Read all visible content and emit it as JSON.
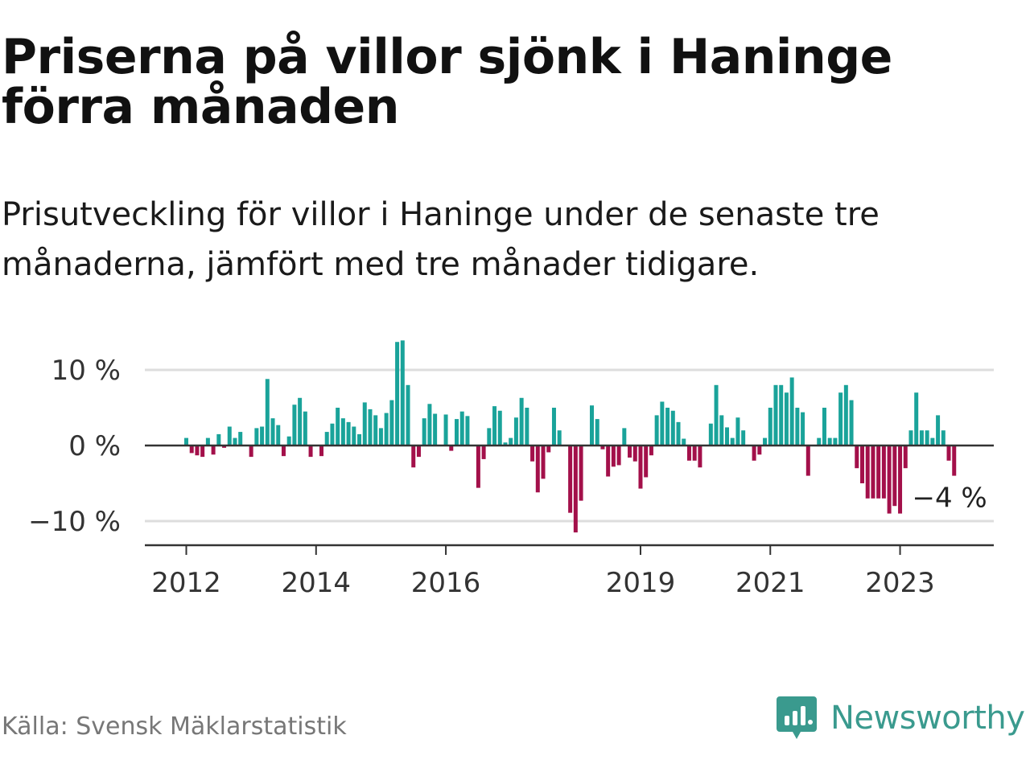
{
  "title": "Priserna på villor sjönk i Haninge förra månaden",
  "subtitle": "Prisutveckling för villor i Haninge under de senaste tre månaderna, jämfört med tre månader tidigare.",
  "source": "Källa: Svensk Mäklarstatistik",
  "brand": {
    "name": "Newsworthy",
    "icon": "newsworthy-logo-icon",
    "color": "#3a9a8e"
  },
  "colors": {
    "positive": "#1aa39a",
    "negative": "#a3104a",
    "grid": "#dddddd",
    "axis": "#333333"
  },
  "chart_data": {
    "type": "bar",
    "title": "Priserna på villor sjönk i Haninge förra månaden",
    "xlabel": "",
    "ylabel": "",
    "unit": "%",
    "ylim": [
      -13.5,
      13.5
    ],
    "grid": true,
    "y_ticks": [
      {
        "value": 10,
        "label": "10 %"
      },
      {
        "value": 0,
        "label": "0 %"
      },
      {
        "value": -10,
        "label": "−10 %"
      }
    ],
    "x_ticks": [
      {
        "label": "2012",
        "index": 0
      },
      {
        "label": "2014",
        "index": 24
      },
      {
        "label": "2016",
        "index": 48
      },
      {
        "label": "2019",
        "index": 84
      },
      {
        "label": "2021",
        "index": 108
      },
      {
        "label": "2023",
        "index": 132
      }
    ],
    "start": "2012-01",
    "annotation": {
      "label": "−4 %",
      "index": 142,
      "value": -4
    },
    "values": [
      1,
      -1,
      -1.3,
      -1.5,
      1,
      -1.2,
      1.5,
      -0.3,
      2.5,
      1,
      1.8,
      0,
      -1.5,
      2.3,
      2.5,
      8.8,
      3.6,
      2.7,
      -1.4,
      1.2,
      5.4,
      6.3,
      4.5,
      -1.5,
      0,
      -1.4,
      1.8,
      2.9,
      5,
      3.6,
      3.1,
      2.5,
      1.5,
      5.7,
      4.8,
      4,
      2.3,
      4.3,
      6,
      13.7,
      13.9,
      8,
      -2.9,
      -1.5,
      3.6,
      5.5,
      4.2,
      0,
      4.1,
      -0.7,
      3.5,
      4.5,
      3.9,
      0,
      -5.6,
      -1.8,
      2.3,
      5.2,
      4.6,
      0.4,
      1,
      3.7,
      6.3,
      5,
      -2.1,
      -6.2,
      -4.4,
      -0.9,
      5,
      2,
      0,
      -8.9,
      -11.5,
      -7.3,
      0.1,
      5.3,
      3.5,
      -0.5,
      -4.1,
      -2.8,
      -2.6,
      2.3,
      -1.6,
      -2.1,
      -5.7,
      -4.2,
      -1.3,
      4,
      5.8,
      5,
      4.6,
      3.1,
      0.9,
      -2,
      -2,
      -2.9,
      0,
      2.9,
      8,
      4,
      2.4,
      1,
      3.7,
      2,
      0,
      -2,
      -1.2,
      1,
      5,
      8,
      8,
      7,
      9,
      5,
      4.4,
      -4,
      0,
      1,
      5,
      1,
      1,
      7,
      8,
      6,
      -3,
      -5,
      -7,
      -7,
      -7,
      -7,
      -9,
      -8,
      -9,
      -3,
      2,
      7,
      2,
      2,
      1,
      4,
      2,
      -2,
      -4
    ]
  }
}
